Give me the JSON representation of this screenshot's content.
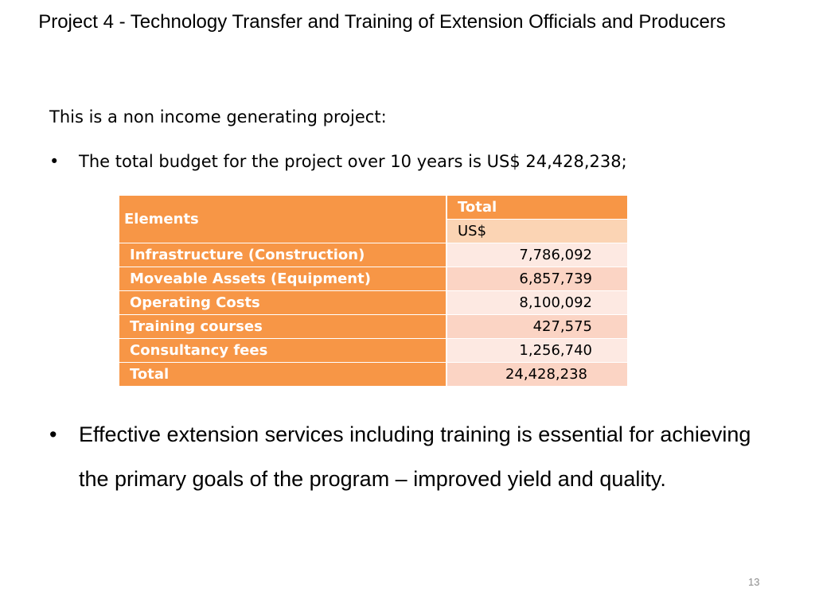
{
  "slide": {
    "title": "Project 4 - Technology Transfer and Training of Extension Officials and Producers",
    "intro": "This is a non income generating project:",
    "bullets": [
      "The total budget for the project over 10 years is US$ 24,428,238;",
      "Effective extension services including training is essential for achieving the primary goals of the program – improved yield and quality."
    ],
    "bullet_symbol": "•",
    "page_number": "13"
  },
  "table": {
    "header": {
      "elements": "Elements",
      "total": "Total",
      "unit": "US$"
    },
    "rows": [
      {
        "label": "Infrastructure (Construction)",
        "value": "7,786,092"
      },
      {
        "label": "Moveable Assets (Equipment)",
        "value": "6,857,739"
      },
      {
        "label": "Operating Costs",
        "value": "8,100,092"
      },
      {
        "label": "Training courses",
        "value": "427,575"
      },
      {
        "label": "Consultancy fees",
        "value": "1,256,740"
      },
      {
        "label": "Total",
        "value": "24,428,238"
      }
    ]
  },
  "colors": {
    "header_orange": "#f79646",
    "unit_cell": "#fbd4b4",
    "row_light": "#fde9e2",
    "row_dark": "#fbd4c4"
  }
}
